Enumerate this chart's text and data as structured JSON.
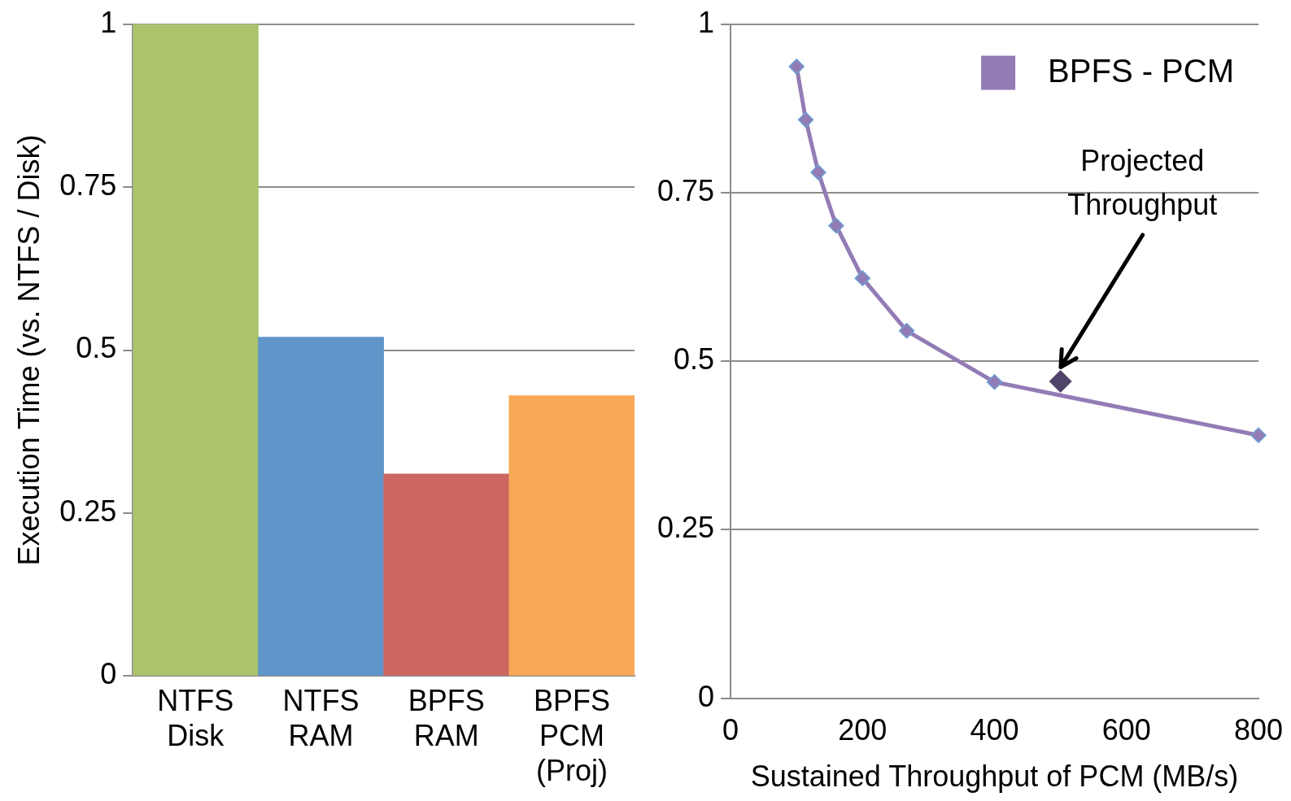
{
  "chart_data": [
    {
      "type": "bar",
      "ylabel": "Execution Time (vs. NTFS / Disk)",
      "categories": [
        "NTFS Disk",
        "NTFS RAM",
        "BPFS RAM",
        "BPFS PCM (Proj)"
      ],
      "values": [
        1,
        0.52,
        0.31,
        0.43
      ],
      "colors": [
        "#abc46c",
        "#6095c9",
        "#cc665f",
        "#f9a857"
      ],
      "ylim": [
        0,
        1
      ],
      "yticks": [
        0,
        0.25,
        0.5,
        0.75,
        1
      ],
      "grid": "y"
    },
    {
      "type": "line",
      "xlabel": "Sustained Throughput of PCM (MB/s)",
      "series": [
        {
          "name": "BPFS - PCM",
          "color": "#937cb5",
          "x": [
            100,
            114,
            133,
            160,
            200,
            267,
            400,
            800
          ],
          "values": [
            0.937,
            0.858,
            0.78,
            0.701,
            0.623,
            0.545,
            0.469,
            0.39
          ]
        },
        {
          "type": "scatter",
          "color": "#51446a",
          "x": [
            500
          ],
          "values": [
            0.47
          ]
        }
      ],
      "annotations": [
        "Projected Throughput"
      ],
      "xlim": [
        0,
        800
      ],
      "xticks": [
        0,
        200,
        400,
        600,
        800
      ],
      "ylim": [
        0,
        1
      ],
      "yticks": [
        0,
        0.25,
        0.5,
        0.75,
        1
      ],
      "grid": "y",
      "legend": "top right",
      "marker": "diamond",
      "line_style": "solid"
    }
  ]
}
